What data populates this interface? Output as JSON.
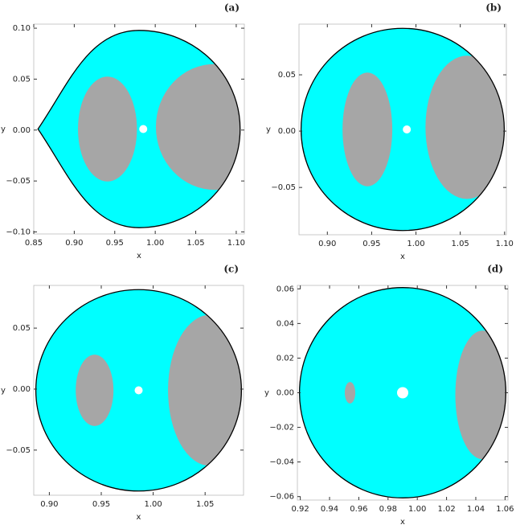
{
  "chart_data": [
    {
      "type": "region",
      "title": "(a)",
      "xlabel": "x",
      "ylabel": "y",
      "xlim": [
        0.85,
        1.11
      ],
      "ylim": [
        -0.102,
        0.104
      ],
      "xticks": [
        0.85,
        {
          "value": 0.9,
          "label": "0.90"
        },
        0.95,
        {
          "value": 1.0,
          "label": "1.00"
        },
        1.05,
        {
          "value": 1.1,
          "label": "1.10"
        }
      ],
      "yticks": [
        {
          "value": -0.1,
          "label": "−0.10"
        },
        {
          "value": -0.05,
          "label": "−0.05"
        },
        {
          "value": 0,
          "label": "0.00"
        },
        0.05,
        {
          "value": 0.1,
          "label": "0.10"
        }
      ]
    },
    {
      "type": "region",
      "title": "(b)",
      "xlabel": "x",
      "ylabel": "y",
      "xlim": [
        0.868,
        1.102
      ],
      "ylim": [
        -0.092,
        0.095
      ],
      "xticks": [
        {
          "value": 0.9,
          "label": "0.90"
        },
        0.95,
        {
          "value": 1.0,
          "label": "1.00"
        },
        1.05,
        {
          "value": 1.1,
          "label": "1.10"
        }
      ],
      "yticks": [
        {
          "value": -0.05,
          "label": "−0.05"
        },
        {
          "value": 0,
          "label": "0.00"
        },
        0.05
      ]
    },
    {
      "type": "region",
      "title": "(c)",
      "xlabel": "x",
      "ylabel": "y",
      "xlim": [
        0.885,
        1.087
      ],
      "ylim": [
        -0.087,
        0.085
      ],
      "xticks": [
        {
          "value": 0.9,
          "label": "0.90"
        },
        0.95,
        {
          "value": 1.0,
          "label": "1.00"
        },
        1.05
      ],
      "yticks": [
        {
          "value": -0.05,
          "label": "−0.05"
        },
        {
          "value": 0,
          "label": "0.00"
        },
        0.05
      ]
    },
    {
      "type": "region",
      "title": "(d)",
      "xlabel": "x",
      "ylabel": "y",
      "xlim": [
        0.918,
        1.062
      ],
      "ylim": [
        -0.062,
        0.062
      ],
      "xticks": [
        0.92,
        0.94,
        0.96,
        0.98,
        {
          "value": 1.0,
          "label": "1.00"
        },
        1.02,
        1.04,
        1.06
      ],
      "yticks": [
        {
          "value": -0.06,
          "label": "−0.06"
        },
        {
          "value": -0.04,
          "label": "−0.04"
        },
        {
          "value": -0.02,
          "label": "−0.02"
        },
        {
          "value": 0,
          "label": "0.00"
        },
        0.02,
        0.04,
        0.06
      ]
    }
  ]
}
